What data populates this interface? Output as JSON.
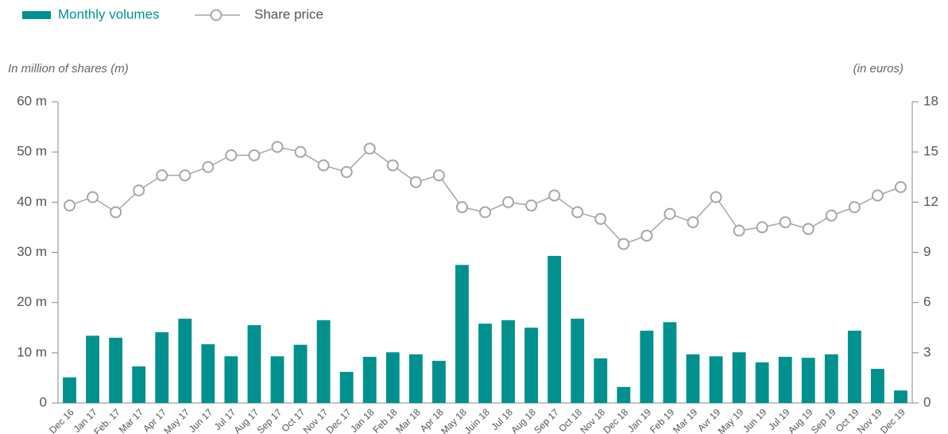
{
  "chart_data": {
    "type": "bar_line",
    "y_label": "In million of shares (m)",
    "y2_label": "(in euros)",
    "categories": [
      "Dec 16",
      "Jan 17",
      "Feb. 17",
      "Mar 17",
      "Apr 17",
      "May 17",
      "Jun 17",
      "Jul 17",
      "Aug 17",
      "Sep 17",
      "Oct 17",
      "Nov 17",
      "Dec 17",
      "Jan 18",
      "Feb 18",
      "Mar 18",
      "Apr 18",
      "May 18",
      "Juin 18",
      "Jul 18",
      "Aug 18",
      "Sep 17",
      "Oct 18",
      "Nov 18",
      "Dec 18",
      "Jan 19",
      "Feb 19",
      "Mar 19",
      "Avr 19",
      "May 19",
      "Jun 19",
      "Jul 19",
      "Aug 19",
      "Sep 19",
      "Oct 19",
      "Nov 19",
      "Dec 19"
    ],
    "series": [
      {
        "name": "Monthly volumes",
        "type": "bar",
        "color": "#00918f",
        "values": [
          5.1,
          13.4,
          13.0,
          7.3,
          14.1,
          16.8,
          11.7,
          9.3,
          15.5,
          9.3,
          11.6,
          16.5,
          6.2,
          9.2,
          10.1,
          9.7,
          8.4,
          27.5,
          15.8,
          16.5,
          15.0,
          29.3,
          16.8,
          8.9,
          3.2,
          14.4,
          16.1,
          9.7,
          9.3,
          10.1,
          8.1,
          9.2,
          9.0,
          9.7,
          14.4,
          6.8,
          2.5
        ]
      },
      {
        "name": "Share price",
        "type": "line",
        "axis": "y2",
        "color": "#a6a6a6",
        "values": [
          11.8,
          12.3,
          11.4,
          12.7,
          13.6,
          13.6,
          14.1,
          14.8,
          14.8,
          15.3,
          15.0,
          14.2,
          13.8,
          15.2,
          14.2,
          13.2,
          13.6,
          11.7,
          11.4,
          12.0,
          11.8,
          12.4,
          11.4,
          11.0,
          9.5,
          10.0,
          11.3,
          10.8,
          12.3,
          10.3,
          10.5,
          10.8,
          10.4,
          11.2,
          11.7,
          12.4,
          12.9
        ]
      }
    ],
    "ylim": [
      0,
      60
    ],
    "yticks": [
      0,
      {
        "value": 10,
        "label": "10 m"
      },
      {
        "value": 20,
        "label": "20 m"
      },
      {
        "value": 30,
        "label": "30 m"
      },
      {
        "value": 40,
        "label": "40 m"
      },
      {
        "value": 50,
        "label": "50 m"
      },
      {
        "value": 60,
        "label": "60 m"
      }
    ],
    "y2lim": [
      0,
      18
    ],
    "y2ticks": [
      0,
      3,
      6,
      9,
      12,
      15,
      18
    ]
  }
}
